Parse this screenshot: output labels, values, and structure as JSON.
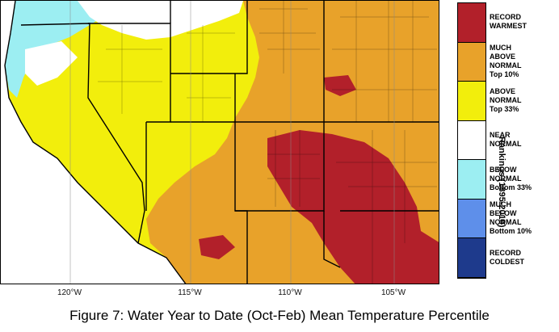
{
  "caption": "Figure 7: Water Year to Date (Oct-Feb) Mean Temperature Percentile",
  "legend_title": "Rankings (1895-2010)",
  "longitude_ticks": [
    "120°W",
    "115°W",
    "110°W",
    "105°W"
  ],
  "legend": [
    {
      "label": "RECORD\nWARMEST",
      "color": "#b2202a"
    },
    {
      "label": "MUCH\nABOVE\nNORMAL\nTop 10%",
      "color": "#e8a22a"
    },
    {
      "label": "ABOVE\nNORMAL\nTop 33%",
      "color": "#f2ee0c"
    },
    {
      "label": "NEAR\nNORMAL",
      "color": "#ffffff"
    },
    {
      "label": "BELOW\nNORMAL\nBottom 33%",
      "color": "#9ceef2"
    },
    {
      "label": "MUCH\nBELOW\nNORMAL\nBottom 10%",
      "color": "#5e8fea"
    },
    {
      "label": "RECORD\nCOLDEST",
      "color": "#1e3a8c"
    }
  ],
  "colors": {
    "record_warmest": "#b2202a",
    "much_above": "#e8a22a",
    "above": "#f2ee0c",
    "near": "#ffffff",
    "below": "#9ceef2",
    "ocean": "#ffffff",
    "boundary": "#000000"
  }
}
